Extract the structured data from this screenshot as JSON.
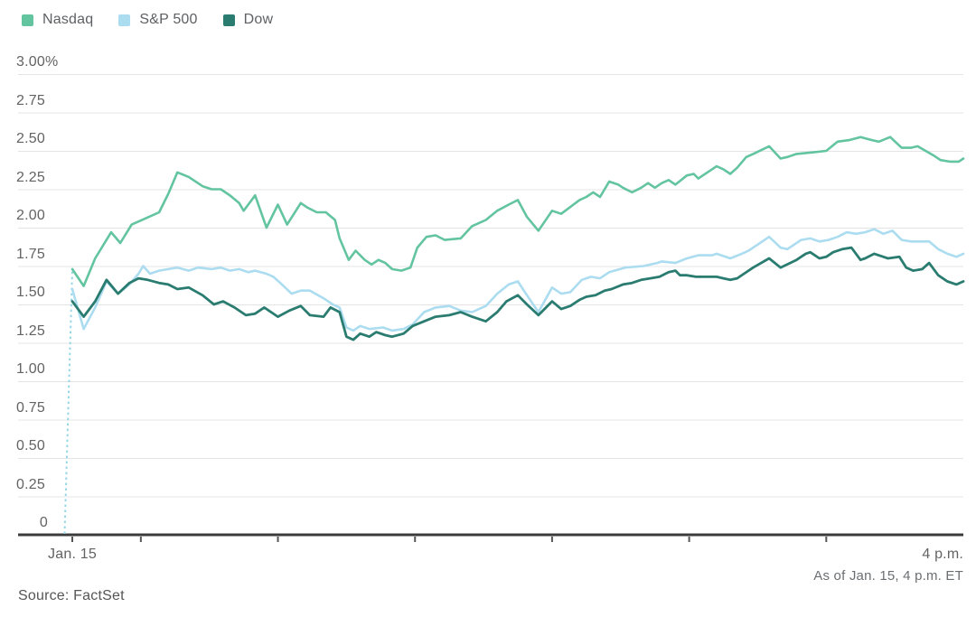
{
  "legend": [
    {
      "label": "Nasdaq",
      "color": "#63c4a0"
    },
    {
      "label": "S&P 500",
      "color": "#abdcf0"
    },
    {
      "label": "Dow",
      "color": "#2a7c70"
    }
  ],
  "source": {
    "label": "Source: FactSet"
  },
  "colors": {
    "grid": "#e4e4e4",
    "axis": "#3b3b3b",
    "tick": "#565656",
    "open_connector": "#96d7e5",
    "text": "#636363"
  },
  "chart_data": {
    "type": "line",
    "title": "",
    "subtitle": "",
    "x_axis": {
      "unit": "minutes after 9:30 a.m. ET",
      "range": [
        0,
        390
      ],
      "start_label": "Jan. 15",
      "end_label": "4 p.m.",
      "note": "As of Jan. 15, 4 p.m. ET",
      "tick_minutes": [
        0,
        30,
        90,
        150,
        210,
        270,
        330
      ]
    },
    "y_axis": {
      "unit": "%",
      "range": [
        0,
        3.0
      ],
      "grid": true,
      "ticks": [
        {
          "label": "3.00%",
          "v": 3.0
        },
        {
          "label": "2.75",
          "v": 2.75
        },
        {
          "label": "2.50",
          "v": 2.5
        },
        {
          "label": "2.25",
          "v": 2.25
        },
        {
          "label": "2.00",
          "v": 2.0
        },
        {
          "label": "1.75",
          "v": 1.75
        },
        {
          "label": "1.50",
          "v": 1.5
        },
        {
          "label": "1.25",
          "v": 1.25
        },
        {
          "label": "1.00",
          "v": 1.0
        },
        {
          "label": "0.75",
          "v": 0.75
        },
        {
          "label": "0.50",
          "v": 0.5
        },
        {
          "label": "0.25",
          "v": 0.25
        },
        {
          "label": "0",
          "v": 0.0
        }
      ]
    },
    "open_connector": {
      "style": "dashed-vertical",
      "minute": 0,
      "from_value": 0,
      "to_value": 1.72
    },
    "legend_position": "top-left",
    "series": [
      {
        "name": "S&P 500",
        "color": "#abdcf0",
        "width": 2.6,
        "points": [
          [
            0,
            1.6
          ],
          [
            5,
            1.34
          ],
          [
            10,
            1.48
          ],
          [
            15,
            1.65
          ],
          [
            20,
            1.57
          ],
          [
            25,
            1.63
          ],
          [
            29,
            1.7
          ],
          [
            31,
            1.75
          ],
          [
            34,
            1.7
          ],
          [
            38,
            1.72
          ],
          [
            42,
            1.73
          ],
          [
            46,
            1.74
          ],
          [
            51,
            1.72
          ],
          [
            55,
            1.74
          ],
          [
            61,
            1.73
          ],
          [
            65,
            1.74
          ],
          [
            69,
            1.72
          ],
          [
            73,
            1.73
          ],
          [
            77,
            1.71
          ],
          [
            80,
            1.72
          ],
          [
            85,
            1.7
          ],
          [
            88,
            1.68
          ],
          [
            91,
            1.64
          ],
          [
            96,
            1.57
          ],
          [
            100,
            1.59
          ],
          [
            104,
            1.59
          ],
          [
            110,
            1.54
          ],
          [
            114,
            1.5
          ],
          [
            117,
            1.48
          ],
          [
            120,
            1.35
          ],
          [
            123,
            1.33
          ],
          [
            126,
            1.36
          ],
          [
            130,
            1.34
          ],
          [
            136,
            1.35
          ],
          [
            140,
            1.33
          ],
          [
            145,
            1.34
          ],
          [
            149,
            1.37
          ],
          [
            154,
            1.45
          ],
          [
            159,
            1.48
          ],
          [
            165,
            1.49
          ],
          [
            170,
            1.46
          ],
          [
            175,
            1.45
          ],
          [
            181,
            1.49
          ],
          [
            186,
            1.57
          ],
          [
            191,
            1.63
          ],
          [
            195,
            1.65
          ],
          [
            199,
            1.56
          ],
          [
            204,
            1.45
          ],
          [
            210,
            1.61
          ],
          [
            214,
            1.57
          ],
          [
            218,
            1.58
          ],
          [
            223,
            1.66
          ],
          [
            227,
            1.68
          ],
          [
            231,
            1.67
          ],
          [
            235,
            1.71
          ],
          [
            242,
            1.74
          ],
          [
            250,
            1.75
          ],
          [
            256,
            1.77
          ],
          [
            258,
            1.78
          ],
          [
            264,
            1.77
          ],
          [
            269,
            1.8
          ],
          [
            274,
            1.82
          ],
          [
            280,
            1.82
          ],
          [
            282,
            1.83
          ],
          [
            288,
            1.8
          ],
          [
            293,
            1.83
          ],
          [
            296,
            1.85
          ],
          [
            300,
            1.89
          ],
          [
            305,
            1.94
          ],
          [
            310,
            1.87
          ],
          [
            313,
            1.86
          ],
          [
            319,
            1.92
          ],
          [
            323,
            1.93
          ],
          [
            327,
            1.91
          ],
          [
            331,
            1.92
          ],
          [
            335,
            1.94
          ],
          [
            339,
            1.97
          ],
          [
            343,
            1.96
          ],
          [
            347,
            1.97
          ],
          [
            351,
            1.99
          ],
          [
            355,
            1.96
          ],
          [
            359,
            1.98
          ],
          [
            363,
            1.92
          ],
          [
            367,
            1.91
          ],
          [
            375,
            1.91
          ],
          [
            379,
            1.86
          ],
          [
            383,
            1.83
          ],
          [
            387,
            1.81
          ],
          [
            390,
            1.83
          ]
        ]
      },
      {
        "name": "Dow",
        "color": "#2a7c70",
        "width": 2.8,
        "points": [
          [
            0,
            1.52
          ],
          [
            5,
            1.42
          ],
          [
            10,
            1.52
          ],
          [
            15,
            1.66
          ],
          [
            20,
            1.57
          ],
          [
            25,
            1.64
          ],
          [
            29,
            1.67
          ],
          [
            33,
            1.66
          ],
          [
            38,
            1.64
          ],
          [
            42,
            1.63
          ],
          [
            46,
            1.6
          ],
          [
            51,
            1.61
          ],
          [
            57,
            1.56
          ],
          [
            62,
            1.5
          ],
          [
            66,
            1.52
          ],
          [
            71,
            1.48
          ],
          [
            76,
            1.43
          ],
          [
            80,
            1.44
          ],
          [
            84,
            1.48
          ],
          [
            90,
            1.42
          ],
          [
            95,
            1.46
          ],
          [
            100,
            1.49
          ],
          [
            104,
            1.43
          ],
          [
            110,
            1.42
          ],
          [
            113,
            1.48
          ],
          [
            117,
            1.45
          ],
          [
            120,
            1.29
          ],
          [
            123,
            1.27
          ],
          [
            126,
            1.31
          ],
          [
            130,
            1.29
          ],
          [
            133,
            1.32
          ],
          [
            137,
            1.3
          ],
          [
            140,
            1.29
          ],
          [
            145,
            1.31
          ],
          [
            149,
            1.36
          ],
          [
            154,
            1.39
          ],
          [
            159,
            1.42
          ],
          [
            165,
            1.43
          ],
          [
            170,
            1.45
          ],
          [
            175,
            1.42
          ],
          [
            181,
            1.39
          ],
          [
            186,
            1.45
          ],
          [
            190,
            1.52
          ],
          [
            195,
            1.56
          ],
          [
            199,
            1.5
          ],
          [
            204,
            1.43
          ],
          [
            210,
            1.52
          ],
          [
            214,
            1.47
          ],
          [
            218,
            1.49
          ],
          [
            222,
            1.53
          ],
          [
            225,
            1.55
          ],
          [
            229,
            1.56
          ],
          [
            233,
            1.59
          ],
          [
            236,
            1.6
          ],
          [
            241,
            1.63
          ],
          [
            245,
            1.64
          ],
          [
            249,
            1.66
          ],
          [
            253,
            1.67
          ],
          [
            257,
            1.68
          ],
          [
            261,
            1.71
          ],
          [
            264,
            1.72
          ],
          [
            266,
            1.69
          ],
          [
            269,
            1.69
          ],
          [
            273,
            1.68
          ],
          [
            277,
            1.68
          ],
          [
            282,
            1.68
          ],
          [
            285,
            1.67
          ],
          [
            288,
            1.66
          ],
          [
            291,
            1.67
          ],
          [
            294,
            1.7
          ],
          [
            298,
            1.74
          ],
          [
            305,
            1.8
          ],
          [
            310,
            1.74
          ],
          [
            317,
            1.79
          ],
          [
            321,
            1.83
          ],
          [
            323,
            1.84
          ],
          [
            327,
            1.8
          ],
          [
            330,
            1.81
          ],
          [
            333,
            1.84
          ],
          [
            337,
            1.86
          ],
          [
            341,
            1.87
          ],
          [
            345,
            1.79
          ],
          [
            347,
            1.8
          ],
          [
            351,
            1.83
          ],
          [
            355,
            1.81
          ],
          [
            357,
            1.8
          ],
          [
            362,
            1.81
          ],
          [
            365,
            1.74
          ],
          [
            368,
            1.72
          ],
          [
            372,
            1.73
          ],
          [
            375,
            1.77
          ],
          [
            379,
            1.69
          ],
          [
            383,
            1.65
          ],
          [
            387,
            1.63
          ],
          [
            390,
            1.65
          ]
        ]
      },
      {
        "name": "Nasdaq",
        "color": "#63c4a0",
        "width": 2.6,
        "points": [
          [
            0,
            1.73
          ],
          [
            5,
            1.62
          ],
          [
            10,
            1.8
          ],
          [
            17,
            1.97
          ],
          [
            21,
            1.9
          ],
          [
            26,
            2.02
          ],
          [
            32,
            2.06
          ],
          [
            38,
            2.1
          ],
          [
            42,
            2.22
          ],
          [
            46,
            2.36
          ],
          [
            51,
            2.33
          ],
          [
            57,
            2.27
          ],
          [
            61,
            2.25
          ],
          [
            65,
            2.25
          ],
          [
            69,
            2.21
          ],
          [
            73,
            2.16
          ],
          [
            75,
            2.11
          ],
          [
            77,
            2.15
          ],
          [
            80,
            2.21
          ],
          [
            85,
            2.0
          ],
          [
            90,
            2.15
          ],
          [
            94,
            2.02
          ],
          [
            100,
            2.16
          ],
          [
            103,
            2.13
          ],
          [
            107,
            2.1
          ],
          [
            111,
            2.1
          ],
          [
            115,
            2.05
          ],
          [
            117,
            1.93
          ],
          [
            121,
            1.79
          ],
          [
            124,
            1.85
          ],
          [
            128,
            1.79
          ],
          [
            131,
            1.76
          ],
          [
            134,
            1.79
          ],
          [
            137,
            1.77
          ],
          [
            140,
            1.73
          ],
          [
            144,
            1.72
          ],
          [
            148,
            1.74
          ],
          [
            151,
            1.87
          ],
          [
            155,
            1.94
          ],
          [
            159,
            1.95
          ],
          [
            163,
            1.92
          ],
          [
            170,
            1.93
          ],
          [
            175,
            2.01
          ],
          [
            181,
            2.05
          ],
          [
            186,
            2.11
          ],
          [
            191,
            2.15
          ],
          [
            195,
            2.18
          ],
          [
            199,
            2.07
          ],
          [
            204,
            1.98
          ],
          [
            210,
            2.11
          ],
          [
            214,
            2.09
          ],
          [
            222,
            2.18
          ],
          [
            225,
            2.2
          ],
          [
            228,
            2.23
          ],
          [
            231,
            2.2
          ],
          [
            235,
            2.3
          ],
          [
            239,
            2.28
          ],
          [
            241,
            2.26
          ],
          [
            245,
            2.23
          ],
          [
            249,
            2.26
          ],
          [
            252,
            2.29
          ],
          [
            255,
            2.26
          ],
          [
            258,
            2.29
          ],
          [
            261,
            2.31
          ],
          [
            264,
            2.28
          ],
          [
            269,
            2.34
          ],
          [
            272,
            2.35
          ],
          [
            274,
            2.32
          ],
          [
            280,
            2.38
          ],
          [
            282,
            2.4
          ],
          [
            285,
            2.38
          ],
          [
            288,
            2.35
          ],
          [
            291,
            2.39
          ],
          [
            295,
            2.46
          ],
          [
            298,
            2.48
          ],
          [
            305,
            2.53
          ],
          [
            310,
            2.45
          ],
          [
            313,
            2.46
          ],
          [
            317,
            2.48
          ],
          [
            324,
            2.49
          ],
          [
            330,
            2.5
          ],
          [
            335,
            2.56
          ],
          [
            340,
            2.57
          ],
          [
            345,
            2.59
          ],
          [
            350,
            2.57
          ],
          [
            353,
            2.56
          ],
          [
            358,
            2.59
          ],
          [
            363,
            2.52
          ],
          [
            367,
            2.52
          ],
          [
            370,
            2.53
          ],
          [
            377,
            2.47
          ],
          [
            380,
            2.44
          ],
          [
            384,
            2.43
          ],
          [
            388,
            2.43
          ],
          [
            390,
            2.45
          ]
        ]
      }
    ]
  }
}
